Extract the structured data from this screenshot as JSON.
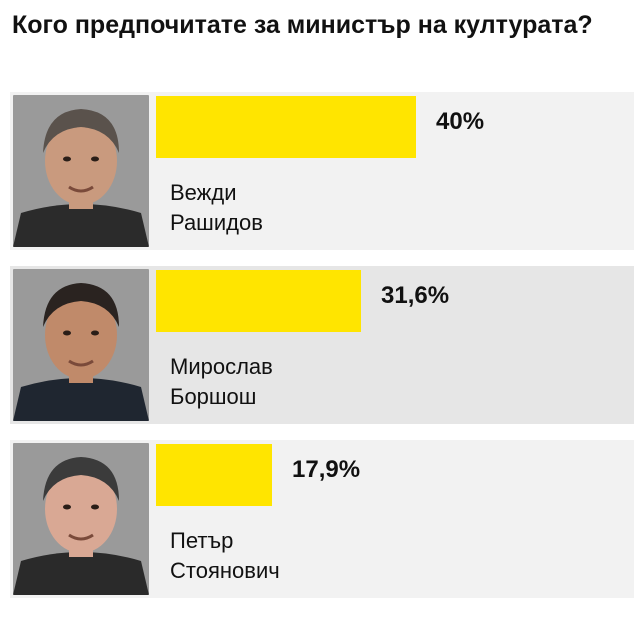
{
  "chart_data": {
    "type": "bar",
    "title": "Кого предпочитате за министър на културата?",
    "categories": [
      "Вежди Рашидов",
      "Мирослав Боршош",
      "Петър Стоянович"
    ],
    "values": [
      40,
      31.6,
      17.9
    ],
    "value_labels": [
      "40%",
      "31,6%",
      "17,9%"
    ],
    "names": [
      {
        "first": "Вежди",
        "last": "Рашидов"
      },
      {
        "first": "Мирослав",
        "last": "Боршош"
      },
      {
        "first": "Петър",
        "last": "Стоянович"
      }
    ],
    "xlim": [
      0,
      40
    ],
    "orientation": "horizontal",
    "grid": false,
    "legend": "none"
  },
  "colors": {
    "bar": "#ffe500",
    "row_backgrounds": [
      "#f2f2f2",
      "#e6e6e6",
      "#f2f2f2"
    ],
    "text": "#111111"
  },
  "icons": [
    "portrait-photo"
  ]
}
